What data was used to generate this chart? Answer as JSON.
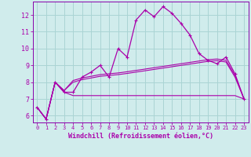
{
  "xlabel": "Windchill (Refroidissement éolien,°C)",
  "background_color": "#d0ecec",
  "grid_color": "#aad4d4",
  "line_color": "#aa00aa",
  "spine_color": "#8800aa",
  "xlim": [
    -0.5,
    23.5
  ],
  "ylim": [
    5.6,
    12.8
  ],
  "xticks": [
    0,
    1,
    2,
    3,
    4,
    5,
    6,
    7,
    8,
    9,
    10,
    11,
    12,
    13,
    14,
    15,
    16,
    17,
    18,
    19,
    20,
    21,
    22,
    23
  ],
  "yticks": [
    6,
    7,
    8,
    9,
    10,
    11,
    12
  ],
  "series1_x": [
    0,
    1,
    2,
    3,
    4,
    5,
    6,
    7,
    8,
    9,
    10,
    11,
    12,
    13,
    14,
    15,
    16,
    17,
    18,
    19,
    20,
    21,
    22,
    23
  ],
  "series1_y": [
    6.5,
    5.8,
    8.0,
    7.4,
    7.4,
    8.3,
    8.6,
    9.0,
    8.3,
    10.0,
    9.5,
    11.7,
    12.3,
    11.9,
    12.5,
    12.1,
    11.5,
    10.8,
    9.7,
    9.3,
    9.1,
    9.5,
    8.5,
    7.0
  ],
  "series2_x": [
    0,
    1,
    2,
    3,
    4,
    5,
    6,
    7,
    8,
    9,
    10,
    11,
    12,
    13,
    14,
    15,
    16,
    17,
    18,
    19,
    20,
    21,
    22,
    23
  ],
  "series2_y": [
    6.5,
    5.8,
    8.0,
    7.5,
    8.1,
    8.25,
    8.35,
    8.45,
    8.5,
    8.55,
    8.62,
    8.7,
    8.78,
    8.86,
    8.94,
    9.02,
    9.1,
    9.18,
    9.26,
    9.34,
    9.38,
    9.3,
    8.4,
    7.0
  ],
  "series3_x": [
    0,
    1,
    2,
    3,
    4,
    5,
    6,
    7,
    8,
    9,
    10,
    11,
    12,
    13,
    14,
    15,
    16,
    17,
    18,
    19,
    20,
    21,
    22,
    23
  ],
  "series3_y": [
    6.5,
    5.8,
    8.0,
    7.5,
    8.0,
    8.15,
    8.25,
    8.35,
    8.4,
    8.45,
    8.52,
    8.6,
    8.68,
    8.76,
    8.84,
    8.92,
    9.0,
    9.08,
    9.16,
    9.24,
    9.28,
    9.2,
    8.3,
    7.0
  ],
  "series4_x": [
    0,
    1,
    2,
    3,
    4,
    5,
    6,
    7,
    8,
    9,
    10,
    11,
    12,
    13,
    14,
    15,
    16,
    17,
    18,
    19,
    20,
    21,
    22,
    23
  ],
  "series4_y": [
    6.5,
    5.8,
    8.0,
    7.4,
    7.2,
    7.2,
    7.2,
    7.2,
    7.2,
    7.2,
    7.2,
    7.2,
    7.2,
    7.2,
    7.2,
    7.2,
    7.2,
    7.2,
    7.2,
    7.2,
    7.2,
    7.2,
    7.2,
    7.0
  ]
}
